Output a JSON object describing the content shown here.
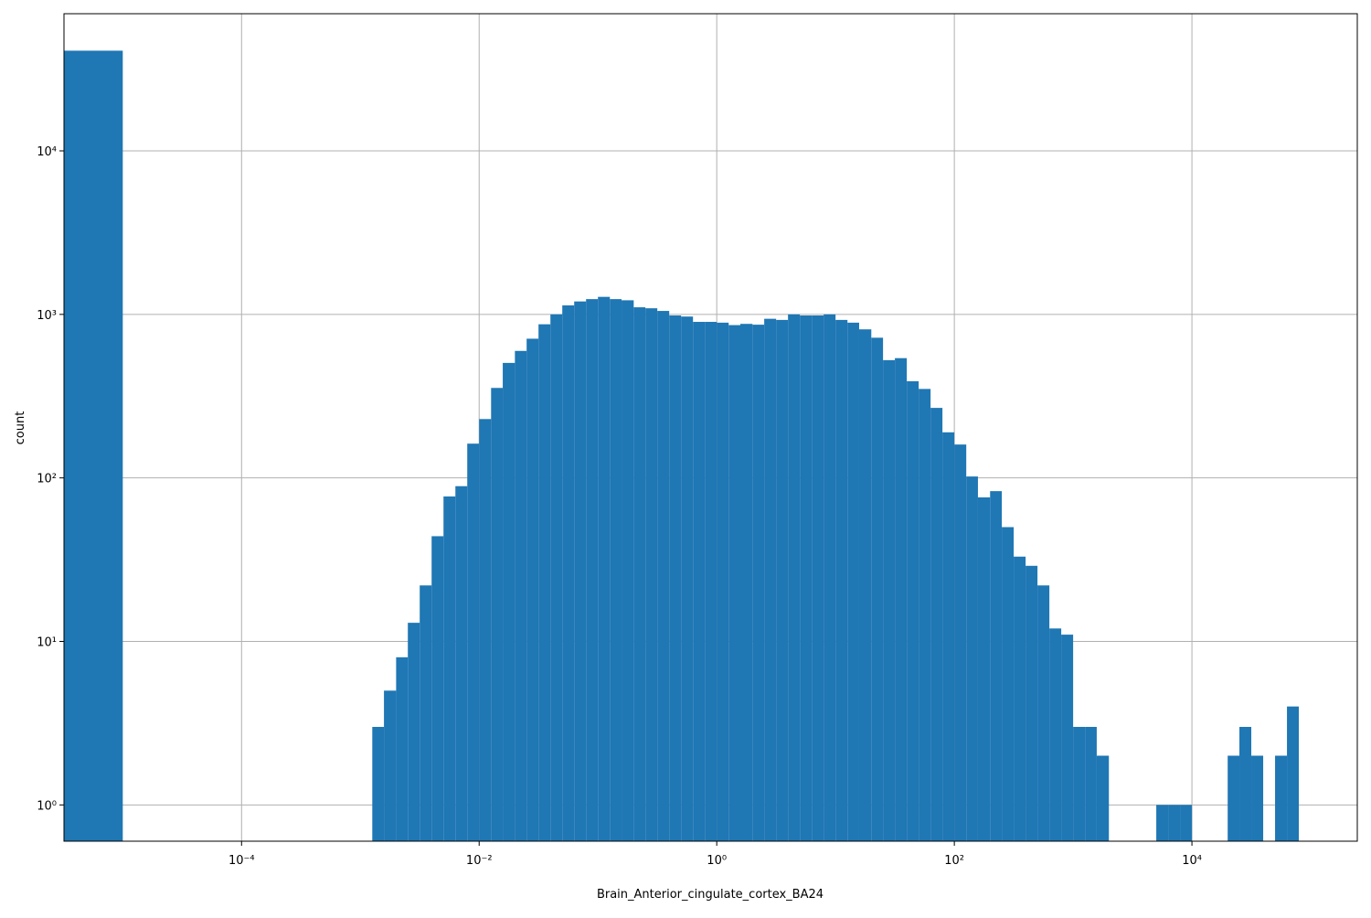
{
  "chart_data": {
    "type": "histogram",
    "xlabel": "Brain_Anterior_cingulate_cortex_BA24",
    "ylabel": "count",
    "color": "#1f77b4",
    "xscale": "log",
    "yscale": "log",
    "grid": true,
    "xlim": [
      3.2e-06,
      246600
    ],
    "ylim": [
      0.6,
      69000
    ],
    "xticks": [
      {
        "value": 0.0001,
        "label": "10⁻⁴"
      },
      {
        "value": 0.01,
        "label": "10⁻²"
      },
      {
        "value": 1,
        "label": "10⁰"
      },
      {
        "value": 100,
        "label": "10²"
      },
      {
        "value": 10000,
        "label": "10⁴"
      }
    ],
    "yticks": [
      {
        "value": 1,
        "label": "10⁰"
      },
      {
        "value": 10,
        "label": "10¹"
      },
      {
        "value": 100,
        "label": "10²"
      },
      {
        "value": 1000,
        "label": "10³"
      },
      {
        "value": 10000,
        "label": "10⁴"
      }
    ],
    "bins": [
      3.2e-06,
      1e-05,
      0.00126,
      0.00158,
      0.002,
      0.00251,
      0.00316,
      0.00398,
      0.00501,
      0.00631,
      0.00794,
      0.01,
      0.0126,
      0.0158,
      0.02,
      0.0251,
      0.0316,
      0.0398,
      0.0501,
      0.0631,
      0.0794,
      0.1,
      0.126,
      0.158,
      0.2,
      0.251,
      0.316,
      0.398,
      0.501,
      0.631,
      0.794,
      1,
      1.26,
      1.58,
      2,
      2.51,
      3.16,
      3.98,
      5.01,
      6.31,
      7.94,
      10,
      12.6,
      15.8,
      20,
      25.1,
      31.6,
      39.8,
      50.1,
      63.1,
      79.4,
      100,
      126,
      158,
      200,
      251,
      316,
      398,
      501,
      631,
      794,
      1000,
      1260,
      1580,
      2000,
      2510,
      3160,
      3980,
      5010,
      6310,
      7940,
      10000,
      12600,
      15800,
      20000,
      25100,
      31600,
      39800,
      50100,
      63100,
      79400
    ],
    "values": [
      41000,
      0,
      3,
      5,
      8,
      13,
      22,
      44,
      77,
      89,
      162,
      229,
      355,
      505,
      598,
      710,
      870,
      1000,
      1135,
      1200,
      1240,
      1280,
      1240,
      1220,
      1105,
      1090,
      1050,
      985,
      970,
      900,
      900,
      890,
      860,
      875,
      865,
      940,
      925,
      1000,
      985,
      985,
      1000,
      925,
      890,
      810,
      720,
      525,
      540,
      390,
      350,
      268,
      190,
      160,
      102,
      76,
      83,
      50,
      33,
      29,
      22,
      12,
      11,
      3,
      3,
      2,
      0,
      0,
      0,
      0,
      1,
      1,
      1,
      0,
      0,
      0,
      2,
      3,
      2,
      0,
      2,
      4
    ]
  }
}
